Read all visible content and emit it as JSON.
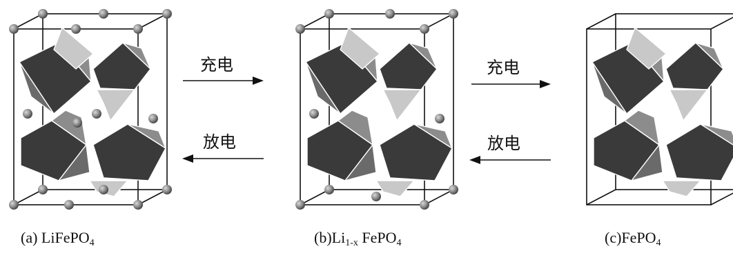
{
  "arrows": [
    {
      "top_label": "充电",
      "bottom_label": "放电"
    },
    {
      "top_label": "充电",
      "bottom_label": "放电"
    }
  ],
  "captions": [
    {
      "prefix": "(a) LiFePO",
      "sub": "4",
      "suffix": ""
    },
    {
      "prefix": "(b)Li",
      "sub": "1-x",
      "suffix": " FePO",
      "sub2": "4"
    },
    {
      "prefix": "(c)FePO",
      "sub": "4",
      "suffix": ""
    }
  ],
  "colors": {
    "dark": "#3a3a3a",
    "mid": "#8c8c8c",
    "light": "#c8c8c8",
    "atom": "#8a8a8a",
    "frame": "#111111"
  }
}
